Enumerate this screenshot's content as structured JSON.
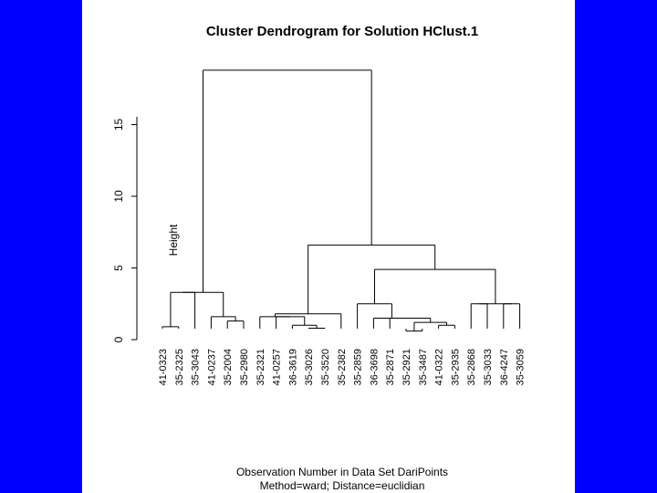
{
  "chart_data": {
    "type": "dendrogram",
    "title": "Cluster Dendrogram for Solution HClust.1",
    "ylabel": "Height",
    "xlabel": "Observation Number in Data Set DariPoints",
    "sublabel": "Method=ward; Distance=euclidian",
    "yticks": [
      "0",
      "5",
      "10",
      "15"
    ],
    "ylim": [
      0,
      19
    ],
    "leaves": [
      "41-0323",
      "35-2325",
      "35-3043",
      "41-0237",
      "35-2004",
      "35-2980",
      "35-2321",
      "41-0257",
      "36-3619",
      "35-3026",
      "35-3520",
      "35-2382",
      "35-2859",
      "36-3698",
      "35-2871",
      "35-2921",
      "35-3487",
      "41-0322",
      "35-2935",
      "35-2868",
      "35-3033",
      "36-4247",
      "35-3059"
    ],
    "merges": [
      {
        "a": "L0",
        "b": "L1",
        "height": 0.9
      },
      {
        "a": "L4",
        "b": "L5",
        "height": 1.3
      },
      {
        "a": "L3",
        "b": "M1",
        "height": 1.6
      },
      {
        "a": "M0",
        "b": "L2",
        "height": 3.3
      },
      {
        "a": "M3",
        "b": "M2",
        "height": 3.3
      },
      {
        "a": "L9",
        "b": "L10",
        "height": 0.8
      },
      {
        "a": "L8",
        "b": "M5",
        "height": 1.0
      },
      {
        "a": "L7",
        "b": "M6",
        "height": 1.6
      },
      {
        "a": "L6",
        "b": "M7",
        "height": 1.6
      },
      {
        "a": "M8",
        "b": "L11",
        "height": 1.8
      },
      {
        "a": "L15",
        "b": "L16",
        "height": 0.6
      },
      {
        "a": "L17",
        "b": "L18",
        "height": 1.0
      },
      {
        "a": "M10",
        "b": "M11",
        "height": 1.2
      },
      {
        "a": "L14",
        "b": "M12",
        "height": 1.5
      },
      {
        "a": "L13",
        "b": "M13",
        "height": 1.5
      },
      {
        "a": "L12",
        "b": "M14",
        "height": 2.5
      },
      {
        "a": "L19",
        "b": "L20",
        "height": 2.5
      },
      {
        "a": "L21",
        "b": "L22",
        "height": 2.5
      },
      {
        "a": "M16",
        "b": "M17",
        "height": 2.5
      },
      {
        "a": "M15",
        "b": "M18",
        "height": 4.9
      },
      {
        "a": "M9",
        "b": "M19",
        "height": 6.6
      },
      {
        "a": "M4",
        "b": "M20",
        "height": 18.8
      }
    ]
  }
}
